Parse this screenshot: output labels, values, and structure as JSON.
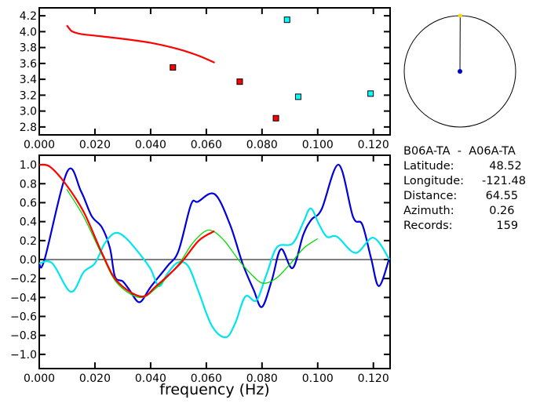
{
  "chart_data": [
    {
      "type": "scatter",
      "xlim": [
        0,
        0.126
      ],
      "ylim": [
        2.7,
        4.3
      ],
      "xticks": [
        "0.000",
        "0.020",
        "0.040",
        "0.060",
        "0.080",
        "0.100",
        "0.120"
      ],
      "yticks": [
        "2.8",
        "3.0",
        "3.2",
        "3.4",
        "3.6",
        "3.8",
        "4.0",
        "4.2"
      ],
      "grid": false,
      "series": [
        {
          "kind": "line",
          "color": "#ff0000",
          "x": [
            0.0099,
            0.011,
            0.012,
            0.015,
            0.02,
            0.03,
            0.04,
            0.05,
            0.057,
            0.063
          ],
          "y": [
            4.08,
            4.03,
            4.0,
            3.97,
            3.95,
            3.91,
            3.86,
            3.78,
            3.7,
            3.61
          ]
        },
        {
          "kind": "points",
          "color": "#ff0000",
          "x": [
            0.048,
            0.072,
            0.085
          ],
          "y": [
            3.55,
            3.37,
            2.91
          ]
        },
        {
          "kind": "points",
          "color": "#00ffff",
          "x": [
            0.089,
            0.093,
            0.119
          ],
          "y": [
            4.15,
            3.18,
            3.22
          ]
        }
      ]
    },
    {
      "type": "line",
      "xlabel": "frequency (Hz)",
      "xlim": [
        0,
        0.126
      ],
      "ylim": [
        -1.15,
        1.1
      ],
      "xticks": [
        "0.000",
        "0.020",
        "0.040",
        "0.060",
        "0.080",
        "0.100",
        "0.120"
      ],
      "yticks": [
        "1.0",
        "0.8",
        "0.6",
        "0.4",
        "0.2",
        "0.0",
        "-0.2",
        "-0.4",
        "-0.6",
        "-0.8",
        "-1.0"
      ],
      "zero_line": true,
      "grid": false,
      "series": [
        {
          "color": "#0000dd",
          "x": [
            0,
            0.0019,
            0.0101,
            0.015,
            0.0188,
            0.0225,
            0.0254,
            0.0272,
            0.03,
            0.0324,
            0.036,
            0.04,
            0.046,
            0.05,
            0.0545,
            0.057,
            0.063,
            0.0685,
            0.073,
            0.077,
            0.08,
            0.0836,
            0.0868,
            0.091,
            0.0948,
            0.0977,
            0.1014,
            0.1075,
            0.1127,
            0.116,
            0.1192,
            0.122,
            0.1258
          ],
          "y": [
            -0.05,
            0.0,
            0.93,
            0.72,
            0.46,
            0.34,
            0.12,
            -0.18,
            -0.23,
            -0.32,
            -0.45,
            -0.29,
            -0.07,
            0.09,
            0.58,
            0.61,
            0.69,
            0.37,
            -0.04,
            -0.32,
            -0.5,
            -0.21,
            0.11,
            -0.09,
            0.26,
            0.42,
            0.53,
            1.0,
            0.45,
            0.37,
            0.01,
            -0.28,
            0.02
          ]
        },
        {
          "color": "#00e5ee",
          "x": [
            0,
            0.0047,
            0.0113,
            0.016,
            0.02,
            0.0235,
            0.0272,
            0.031,
            0.0366,
            0.04,
            0.043,
            0.046,
            0.0498,
            0.0535,
            0.057,
            0.062,
            0.067,
            0.0704,
            0.074,
            0.078,
            0.0817,
            0.0854,
            0.091,
            0.0948,
            0.0975,
            0.1005,
            0.1033,
            0.107,
            0.1136,
            0.12,
            0.1258
          ],
          "y": [
            -0.04,
            -0.04,
            -0.34,
            -0.13,
            -0.04,
            0.17,
            0.28,
            0.23,
            0.04,
            -0.1,
            -0.28,
            -0.15,
            -0.03,
            -0.07,
            -0.32,
            -0.7,
            -0.82,
            -0.67,
            -0.39,
            -0.43,
            -0.15,
            0.13,
            0.17,
            0.39,
            0.54,
            0.37,
            0.24,
            0.24,
            0.07,
            0.23,
            0.0
          ]
        },
        {
          "color": "#00dd00",
          "x": [
            0.0099,
            0.016,
            0.0225,
            0.028,
            0.036,
            0.042,
            0.05,
            0.055,
            0.0597,
            0.063,
            0.067,
            0.072,
            0.077,
            0.0805,
            0.085,
            0.09,
            0.095,
            0.1
          ],
          "y": [
            0.74,
            0.45,
            0.05,
            -0.25,
            -0.4,
            -0.3,
            -0.05,
            0.17,
            0.3,
            0.29,
            0.18,
            -0.02,
            -0.18,
            -0.25,
            -0.2,
            -0.05,
            0.12,
            0.22
          ]
        },
        {
          "color": "#ff0000",
          "x": [
            0,
            0.0038,
            0.0094,
            0.016,
            0.0225,
            0.028,
            0.0366,
            0.042,
            0.0507,
            0.0573,
            0.0629
          ],
          "y": [
            1.0,
            0.98,
            0.8,
            0.5,
            0.07,
            -0.23,
            -0.39,
            -0.28,
            -0.04,
            0.2,
            0.3
          ]
        }
      ]
    }
  ],
  "azimuth_plot": {
    "azimuth_deg": 0.26,
    "station_color": "#ffd700",
    "center_color": "#0000cc"
  },
  "info": {
    "pair": "B06A-TA  -  A06A-TA",
    "rows": [
      {
        "label": "Latitude:",
        "value": "  48.52"
      },
      {
        "label": "Longitude:",
        "value": "-121.48"
      },
      {
        "label": "Distance:",
        "value": " 64.55"
      },
      {
        "label": "Azimuth:",
        "value": "  0.26"
      },
      {
        "label": "Records:",
        "value": "    159"
      }
    ]
  }
}
